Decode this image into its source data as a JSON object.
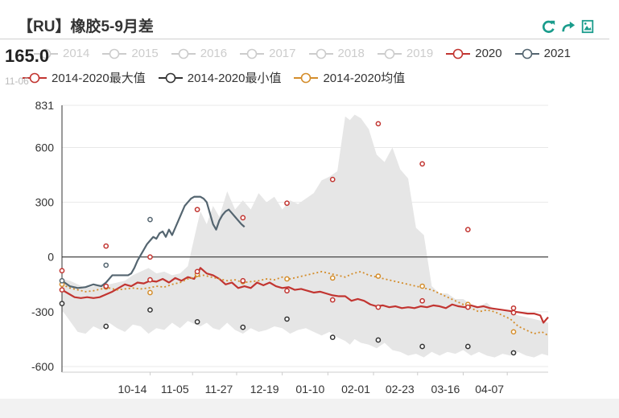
{
  "title": "【RU】橡胶5-9月差",
  "tooltip": {
    "value": "165.0",
    "date": "11-06"
  },
  "toolbox": [
    {
      "name": "refresh-icon",
      "color": "#1a9c8c"
    },
    {
      "name": "share-icon",
      "color": "#1a9c8c"
    },
    {
      "name": "save-image-icon",
      "color": "#1a9c8c"
    }
  ],
  "legend": {
    "row1": [
      {
        "label": "2014",
        "color": "#cccccc",
        "active": false
      },
      {
        "label": "2015",
        "color": "#cccccc",
        "active": false
      },
      {
        "label": "2016",
        "color": "#cccccc",
        "active": false
      },
      {
        "label": "2017",
        "color": "#cccccc",
        "active": false
      },
      {
        "label": "2018",
        "color": "#cccccc",
        "active": false
      },
      {
        "label": "2019",
        "color": "#cccccc",
        "active": false
      },
      {
        "label": "2020",
        "color": "#c23531",
        "active": true
      },
      {
        "label": "2021",
        "color": "#546570",
        "active": true
      }
    ],
    "row2": [
      {
        "label": "2014-2020最大值",
        "color": "#c23531",
        "active": true
      },
      {
        "label": "2014-2020最小值",
        "color": "#333333",
        "active": true
      },
      {
        "label": "2014-2020均值",
        "color": "#d48d2b",
        "active": true
      }
    ]
  },
  "chart_data": {
    "type": "line",
    "ylim": [
      -631,
      831
    ],
    "yticks": [
      831,
      600,
      300,
      0,
      -300,
      -600
    ],
    "xticks": [
      "10-14",
      "11-05",
      "11-27",
      "12-19",
      "01-10",
      "02-01",
      "02-23",
      "03-16",
      "04-07"
    ],
    "band_color": "#e6e6e6",
    "band": {
      "x": [
        0,
        5,
        10,
        15,
        20,
        25,
        30,
        35,
        40,
        45,
        50,
        55,
        60,
        65,
        70,
        75,
        80,
        85,
        88,
        92,
        96,
        100,
        105,
        110,
        115,
        120,
        125,
        130,
        135,
        140,
        145,
        150,
        155,
        160,
        165,
        170,
        175,
        180,
        183,
        186,
        190,
        195,
        200,
        205,
        210,
        215,
        220,
        225,
        230,
        235,
        240,
        245,
        250,
        255,
        260,
        265,
        270,
        275,
        280,
        285,
        290,
        295,
        300,
        305,
        309
      ],
      "upper": [
        -120,
        -130,
        -150,
        -170,
        -160,
        -150,
        -150,
        -140,
        -130,
        -100,
        -80,
        -60,
        -90,
        -80,
        -100,
        -90,
        -50,
        140,
        250,
        180,
        280,
        220,
        360,
        260,
        310,
        260,
        350,
        300,
        330,
        260,
        310,
        290,
        320,
        350,
        420,
        440,
        470,
        770,
        750,
        780,
        760,
        700,
        560,
        520,
        600,
        480,
        430,
        160,
        120,
        -160,
        -200,
        -200,
        -230,
        -230,
        -260,
        -270,
        -250,
        -290,
        -300,
        -300,
        -320,
        -330,
        -340,
        -350,
        -360
      ],
      "lower": [
        -290,
        -350,
        -410,
        -420,
        -380,
        -400,
        -360,
        -390,
        -410,
        -370,
        -380,
        -420,
        -390,
        -400,
        -360,
        -390,
        -350,
        -370,
        -380,
        -360,
        -390,
        -400,
        -360,
        -400,
        -420,
        -390,
        -410,
        -400,
        -380,
        -390,
        -420,
        -400,
        -390,
        -410,
        -430,
        -410,
        -440,
        -460,
        -480,
        -450,
        -470,
        -480,
        -500,
        -470,
        -510,
        -520,
        -540,
        -530,
        -550,
        -520,
        -540,
        -520,
        -530,
        -510,
        -540,
        -520,
        -540,
        -550,
        -530,
        -540,
        -520,
        -540,
        -550,
        -530,
        -540
      ]
    },
    "series": [
      {
        "name": "2020",
        "color": "#c23531",
        "width": 2.2,
        "x": [
          0,
          4,
          8,
          12,
          16,
          20,
          24,
          28,
          32,
          36,
          40,
          44,
          48,
          52,
          56,
          60,
          64,
          68,
          72,
          76,
          80,
          84,
          88,
          92,
          96,
          100,
          104,
          108,
          112,
          116,
          120,
          124,
          128,
          132,
          136,
          140,
          144,
          148,
          152,
          156,
          160,
          164,
          168,
          172,
          176,
          180,
          184,
          188,
          192,
          196,
          200,
          204,
          208,
          212,
          216,
          220,
          224,
          228,
          232,
          236,
          240,
          244,
          248,
          252,
          256,
          260,
          264,
          268,
          272,
          276,
          280,
          284,
          288,
          292,
          296,
          300,
          304,
          306,
          309
        ],
        "y": [
          -180,
          -200,
          -220,
          -225,
          -220,
          -225,
          -220,
          -205,
          -190,
          -170,
          -150,
          -160,
          -140,
          -145,
          -130,
          -135,
          -120,
          -140,
          -115,
          -130,
          -110,
          -120,
          -60,
          -90,
          -100,
          -120,
          -150,
          -140,
          -170,
          -160,
          -170,
          -140,
          -155,
          -140,
          -160,
          -170,
          -165,
          -180,
          -175,
          -185,
          -195,
          -190,
          -200,
          -210,
          -215,
          -215,
          -240,
          -230,
          -240,
          -260,
          -270,
          -265,
          -275,
          -270,
          -280,
          -275,
          -280,
          -270,
          -275,
          -265,
          -270,
          -280,
          -260,
          -270,
          -275,
          -265,
          -275,
          -270,
          -280,
          -285,
          -290,
          -295,
          -300,
          -305,
          -310,
          -310,
          -320,
          -360,
          -330
        ]
      },
      {
        "name": "2021",
        "color": "#546570",
        "width": 2.2,
        "x": [
          0,
          5,
          10,
          15,
          20,
          25,
          28,
          30,
          32,
          34,
          36,
          38,
          40,
          42,
          44,
          46,
          48,
          50,
          52,
          54,
          56,
          58,
          60,
          62,
          64,
          66,
          68,
          70,
          72,
          74,
          76,
          78,
          80,
          82,
          84,
          86,
          88,
          90,
          92,
          94,
          96,
          98,
          100,
          102,
          104,
          106,
          108,
          110,
          112,
          114,
          116
        ],
        "y": [
          -130,
          -160,
          -170,
          -165,
          -150,
          -160,
          -140,
          -120,
          -100,
          -100,
          -100,
          -100,
          -100,
          -100,
          -90,
          -60,
          -20,
          10,
          40,
          70,
          90,
          110,
          100,
          130,
          140,
          110,
          150,
          120,
          160,
          200,
          240,
          280,
          300,
          320,
          330,
          330,
          330,
          320,
          300,
          240,
          180,
          150,
          200,
          230,
          250,
          260,
          240,
          220,
          200,
          180,
          165
        ]
      },
      {
        "name": "2014-2020均值",
        "color": "#d48d2b",
        "width": 1.8,
        "dash": "2,3",
        "x": [
          0,
          5,
          10,
          15,
          20,
          25,
          30,
          35,
          40,
          45,
          50,
          55,
          60,
          65,
          70,
          75,
          80,
          85,
          90,
          95,
          100,
          105,
          110,
          115,
          120,
          125,
          130,
          135,
          140,
          145,
          150,
          155,
          160,
          165,
          170,
          175,
          180,
          185,
          190,
          195,
          200,
          205,
          210,
          215,
          220,
          225,
          230,
          235,
          240,
          245,
          250,
          255,
          260,
          265,
          270,
          275,
          280,
          285,
          290,
          295,
          300,
          305,
          309
        ],
        "y": [
          -150,
          -170,
          -180,
          -190,
          -185,
          -175,
          -170,
          -180,
          -175,
          -170,
          -175,
          -170,
          -160,
          -165,
          -150,
          -140,
          -120,
          -110,
          -100,
          -110,
          -120,
          -130,
          -125,
          -140,
          -135,
          -130,
          -120,
          -125,
          -110,
          -120,
          -110,
          -100,
          -90,
          -80,
          -90,
          -100,
          -110,
          -90,
          -80,
          -100,
          -110,
          -120,
          -130,
          -140,
          -150,
          -160,
          -170,
          -180,
          -200,
          -220,
          -240,
          -260,
          -280,
          -300,
          -290,
          -300,
          -320,
          -340,
          -380,
          -400,
          -420,
          -410,
          -430
        ]
      }
    ],
    "markers": [
      {
        "series": "2014-2020最大值",
        "color": "#c23531",
        "x": [
          0,
          28,
          56,
          86,
          115,
          143,
          172,
          201,
          229,
          258,
          287
        ],
        "y": [
          -75,
          60,
          0,
          260,
          215,
          295,
          425,
          730,
          510,
          150,
          -280
        ]
      },
      {
        "series": "2014-2020最小值",
        "color": "#333333",
        "x": [
          0,
          28,
          56,
          86,
          115,
          143,
          172,
          201,
          229,
          258,
          287
        ],
        "y": [
          -255,
          -380,
          -290,
          -355,
          -385,
          -340,
          -440,
          -455,
          -490,
          -490,
          -525
        ]
      },
      {
        "series": "2014-2020均值",
        "color": "#d48d2b",
        "x": [
          0,
          28,
          56,
          86,
          115,
          143,
          172,
          201,
          229,
          258,
          287
        ],
        "y": [
          -150,
          -165,
          -195,
          -95,
          -135,
          -120,
          -115,
          -105,
          -160,
          -260,
          -410
        ]
      },
      {
        "series": "2020",
        "color": "#c23531",
        "x": [
          0,
          28,
          56,
          86,
          115,
          143,
          172,
          201,
          229,
          258,
          287
        ],
        "y": [
          -180,
          -160,
          -125,
          -80,
          -130,
          -185,
          -235,
          -275,
          -240,
          -275,
          -305
        ]
      },
      {
        "series": "2021",
        "color": "#546570",
        "x": [
          0,
          28,
          56
        ],
        "y": [
          -130,
          -45,
          205
        ]
      }
    ]
  }
}
